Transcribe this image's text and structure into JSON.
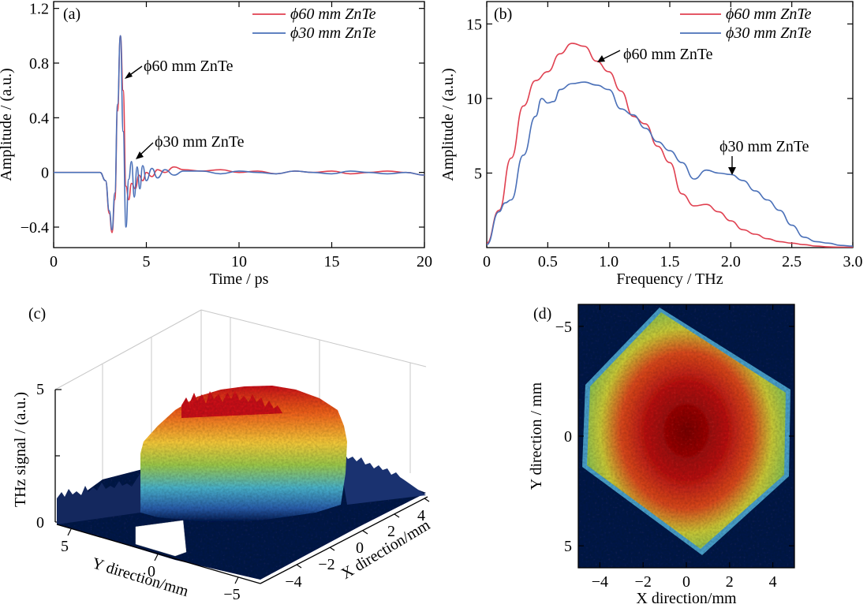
{
  "chart_data": [
    {
      "panel": "(a)",
      "type": "line",
      "xlabel": "Time / ps",
      "ylabel": "Amplitude / (a.u.)",
      "xlim": [
        0,
        20
      ],
      "ylim": [
        -0.55,
        1.25
      ],
      "xticks": [
        0,
        5,
        10,
        15,
        20
      ],
      "xtick_labels": [
        "0",
        "5",
        "10",
        "15",
        "20"
      ],
      "yticks": [
        -0.4,
        0,
        0.4,
        0.8,
        1.2
      ],
      "ytick_labels": [
        "−0.4",
        "0",
        "0.4",
        "0.8",
        "1.2"
      ],
      "legend_position": "top-right",
      "series": [
        {
          "name": "ϕ60 mm ZnTe",
          "color": "#e04050",
          "x": [
            0,
            2.5,
            2.8,
            3.0,
            3.15,
            3.3,
            3.45,
            3.6,
            3.75,
            3.9,
            4.05,
            4.2,
            4.4,
            4.6,
            4.8,
            5.0,
            5.3,
            5.6,
            6.0,
            6.5,
            7.0,
            8.0,
            9.0,
            10.0,
            11.0,
            12.0,
            13.0,
            14.0,
            15.0,
            16.0,
            17.0,
            18.0,
            19.0,
            20.0
          ],
          "values": [
            0,
            0,
            -0.06,
            -0.3,
            -0.44,
            -0.2,
            0.45,
            1.0,
            0.6,
            -0.1,
            -0.2,
            -0.08,
            -0.12,
            -0.02,
            -0.06,
            0.0,
            -0.03,
            0.02,
            0.0,
            0.04,
            0.02,
            0.01,
            0.02,
            0.0,
            0.01,
            -0.01,
            0.01,
            0.0,
            0.01,
            -0.01,
            0.0,
            0.01,
            0.0,
            -0.02
          ]
        },
        {
          "name": "ϕ30 mm ZnTe",
          "color": "#4a70b8",
          "x": [
            0,
            2.5,
            2.8,
            3.0,
            3.15,
            3.3,
            3.45,
            3.6,
            3.75,
            3.9,
            4.05,
            4.2,
            4.35,
            4.5,
            4.65,
            4.8,
            5.0,
            5.3,
            5.6,
            6.0,
            6.5,
            7.0,
            8.0,
            9.0,
            10.0,
            11.0,
            12.0,
            13.0,
            14.0,
            15.0,
            16.0,
            17.0,
            18.0,
            19.0,
            20.0
          ],
          "values": [
            0,
            0,
            -0.06,
            -0.28,
            -0.42,
            -0.15,
            0.5,
            1.0,
            0.3,
            -0.4,
            -0.05,
            0.08,
            -0.18,
            0.04,
            -0.12,
            0.05,
            -0.06,
            0.03,
            -0.04,
            0.02,
            -0.02,
            0.01,
            0.01,
            -0.01,
            0.01,
            0.0,
            -0.01,
            0.01,
            0.0,
            -0.01,
            0.01,
            0.0,
            -0.01,
            0.0,
            -0.02
          ]
        }
      ],
      "annotations": [
        "ϕ60 mm ZnTe",
        "ϕ30 mm ZnTe"
      ]
    },
    {
      "panel": "(b)",
      "type": "line",
      "xlabel": "Frequency / THz",
      "ylabel": "Amplitude / (a.u.)",
      "xlim": [
        0,
        3.0
      ],
      "ylim": [
        0,
        16.5
      ],
      "xticks": [
        0,
        0.5,
        1.0,
        1.5,
        2.0,
        2.5,
        3.0
      ],
      "xtick_labels": [
        "0",
        "0.5",
        "1.0",
        "1.5",
        "2.0",
        "2.5",
        "3.0"
      ],
      "yticks": [
        5,
        10,
        15
      ],
      "ytick_labels": [
        "5",
        "10",
        "15"
      ],
      "legend_position": "top-right",
      "series": [
        {
          "name": "ϕ60 mm ZnTe",
          "color": "#e04050",
          "x": [
            0,
            0.1,
            0.2,
            0.3,
            0.4,
            0.5,
            0.6,
            0.7,
            0.8,
            0.9,
            1.0,
            1.1,
            1.2,
            1.3,
            1.4,
            1.5,
            1.6,
            1.7,
            1.8,
            1.9,
            2.0,
            2.1,
            2.2,
            2.3,
            2.4,
            2.5,
            2.6,
            2.7,
            2.8,
            2.9,
            3.0
          ],
          "values": [
            0.3,
            2.5,
            6.0,
            9.5,
            11.2,
            11.8,
            13.0,
            13.7,
            13.5,
            12.5,
            11.8,
            10.5,
            8.8,
            8.3,
            6.8,
            5.7,
            3.6,
            2.8,
            2.9,
            2.4,
            1.8,
            1.2,
            0.9,
            0.6,
            0.4,
            0.3,
            0.2,
            0.1,
            0.05,
            0.03,
            0.02
          ]
        },
        {
          "name": "ϕ30 mm ZnTe",
          "color": "#4a70b8",
          "x": [
            0,
            0.1,
            0.15,
            0.2,
            0.3,
            0.4,
            0.45,
            0.5,
            0.55,
            0.6,
            0.7,
            0.8,
            0.9,
            1.0,
            1.1,
            1.2,
            1.3,
            1.4,
            1.5,
            1.6,
            1.7,
            1.8,
            1.9,
            2.0,
            2.1,
            2.2,
            2.3,
            2.4,
            2.5,
            2.6,
            2.7,
            2.8,
            2.9,
            3.0
          ],
          "values": [
            0.2,
            2.4,
            3.0,
            3.2,
            6.2,
            8.8,
            10.0,
            9.7,
            9.8,
            10.6,
            11.0,
            11.1,
            10.9,
            10.6,
            9.3,
            8.9,
            8.0,
            7.1,
            6.5,
            5.7,
            4.6,
            5.2,
            5.0,
            4.9,
            4.5,
            3.8,
            3.2,
            2.5,
            1.5,
            0.7,
            0.4,
            0.3,
            0.15,
            0.1
          ]
        }
      ],
      "annotations": [
        "ϕ60 mm ZnTe",
        "ϕ30 mm ZnTe"
      ]
    },
    {
      "panel": "(c)",
      "type": "surface-3d",
      "zlabel": "THz signal / (a.u.)",
      "xlabel": "X direction/mm",
      "ylabel": "Y direction/mm",
      "zticks": [
        "0",
        "5"
      ],
      "x_tick_labels": [
        "−4",
        "−2",
        "0",
        "2",
        "4"
      ],
      "y_tick_labels": [
        "5",
        "0",
        "−5"
      ],
      "colormap": "jet"
    },
    {
      "panel": "(d)",
      "type": "heatmap",
      "xlabel": "X direction/mm",
      "ylabel": "Y direction / mm",
      "xlim": [
        -5,
        5
      ],
      "ylim": [
        -6,
        6
      ],
      "xtick_labels": [
        "−4",
        "−2",
        "0",
        "2",
        "4"
      ],
      "ytick_labels": [
        "−5",
        "0",
        "5"
      ],
      "colormap": "jet"
    }
  ]
}
